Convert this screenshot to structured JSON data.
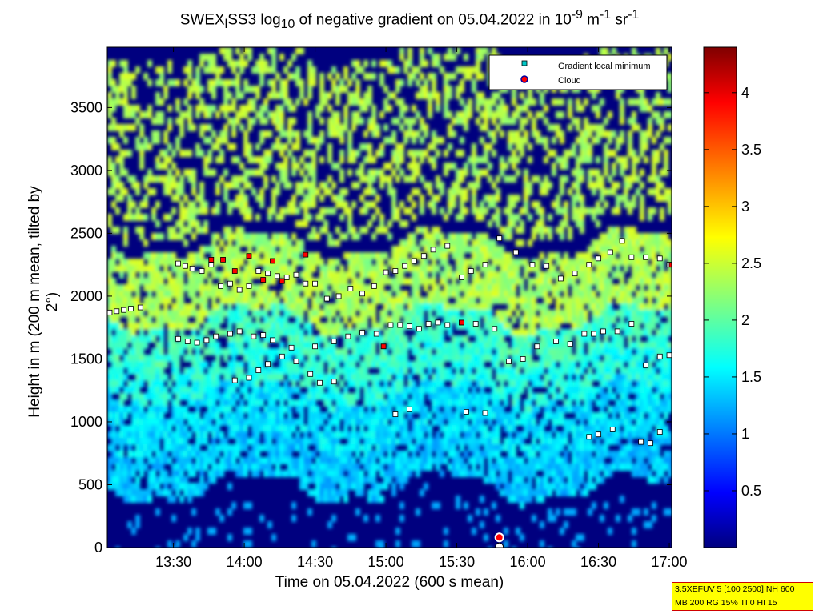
{
  "chart_data": {
    "type": "heatmap",
    "title_parts": {
      "prefix": "SWEX",
      "sub1": "l",
      "mid": "SS3 log",
      "sub2": "10",
      "rest": " of negative gradient on 05.04.2022 in 10",
      "sup1": "-9",
      "unit1": " m",
      "sup2": "-1",
      "unit2": " sr",
      "sup3": "-1"
    },
    "xlabel": "Time on 05.04.2022 (600 s mean)",
    "ylabel": "Height in m (200 m mean, tilted by 2°)",
    "x_ticks": [
      "13:30",
      "14:00",
      "14:30",
      "15:00",
      "15:30",
      "16:00",
      "16:30",
      "17:00"
    ],
    "x_tick_minutes": [
      810,
      840,
      870,
      900,
      930,
      960,
      990,
      1020
    ],
    "xlim_minutes": [
      782,
      1021
    ],
    "y_ticks": [
      0,
      500,
      1000,
      1500,
      2000,
      2500,
      3000,
      3500
    ],
    "ylim": [
      0,
      3980
    ],
    "colorbar_ticks": [
      "0.5",
      "1",
      "1.5",
      "2",
      "2.5",
      "3",
      "3.5",
      "4"
    ],
    "colorbar_values": [
      0.5,
      1,
      1.5,
      2,
      2.5,
      3,
      3.5,
      4
    ],
    "colorbar_range": [
      0,
      4.4
    ],
    "legend": {
      "placement": "top-right",
      "entries": [
        {
          "label": "Gradient local minimum",
          "marker": "square",
          "color": "#00c8c8"
        },
        {
          "label": "Cloud",
          "marker": "circle",
          "color": "#ff0000"
        }
      ]
    },
    "layers": [
      {
        "height_start": [
          1880,
          1900,
          2250,
          2200,
          2100,
          2300,
          2350,
          2250,
          2350,
          2200
        ],
        "height_end": [
          1980,
          2050,
          2300,
          2250,
          2300,
          2350,
          2450,
          2350,
          2300,
          2350
        ],
        "minute_start": 782,
        "minute_end": 1021,
        "level": 2.4
      },
      {
        "height_start": [
          1600,
          1650,
          1300,
          1300,
          1650,
          1700,
          1100,
          1350,
          1500,
          1100
        ],
        "height_end": [
          1700,
          1750,
          1400,
          1350,
          1750,
          1800,
          1200,
          1450,
          1550,
          1500
        ],
        "level": 1.9
      },
      {
        "height_start": [
          950,
          1050,
          1000,
          1050,
          1050,
          1000,
          1100,
          950,
          850,
          950
        ],
        "height_end": [
          1100,
          1150,
          1150,
          1150,
          1150,
          1150,
          1150,
          1100,
          950,
          1000
        ],
        "level": 1.5
      }
    ],
    "series": [
      {
        "name": "Gradient local minimum",
        "x_minutes": [
          783,
          786,
          789,
          792,
          796,
          812,
          815,
          818,
          822,
          826,
          830,
          834,
          838,
          842,
          846,
          850,
          854,
          858,
          862,
          866,
          870,
          875,
          880,
          885,
          890,
          895,
          900,
          904,
          908,
          912,
          916,
          920,
          926,
          932,
          936,
          942,
          948,
          955,
          962,
          968,
          974,
          980,
          986,
          990,
          995,
          1000,
          1004,
          1010,
          1016,
          1020,
          812,
          816,
          820,
          824,
          828,
          834,
          838,
          844,
          848,
          852,
          860,
          870,
          878,
          884,
          890,
          896,
          902,
          906,
          910,
          914,
          918,
          922,
          926,
          932,
          938,
          946,
          952,
          958,
          964,
          972,
          978,
          984,
          988,
          992,
          998,
          1004,
          1010,
          1016,
          1020,
          836,
          842,
          846,
          850,
          856,
          862,
          868,
          872,
          878,
          904,
          910,
          934,
          942,
          986,
          990,
          996,
          1008,
          1012,
          1016
        ],
        "y": [
          1870,
          1880,
          1890,
          1900,
          1910,
          2260,
          2240,
          2220,
          2200,
          2250,
          2080,
          2100,
          2050,
          2080,
          2200,
          2180,
          2160,
          2150,
          2170,
          2100,
          2100,
          1980,
          2000,
          2060,
          2020,
          2080,
          2190,
          2200,
          2240,
          2280,
          2320,
          2370,
          2400,
          2150,
          2200,
          2250,
          2460,
          2350,
          2250,
          2240,
          2140,
          2180,
          2250,
          2300,
          2350,
          2440,
          2310,
          2310,
          2300,
          2250,
          1660,
          1640,
          1630,
          1650,
          1680,
          1700,
          1720,
          1680,
          1690,
          1650,
          1590,
          1600,
          1640,
          1680,
          1710,
          1700,
          1770,
          1770,
          1760,
          1740,
          1780,
          1790,
          1770,
          1790,
          1780,
          1740,
          1480,
          1500,
          1600,
          1640,
          1620,
          1700,
          1700,
          1720,
          1720,
          1780,
          1450,
          1520,
          1530,
          1330,
          1350,
          1410,
          1460,
          1520,
          1480,
          1380,
          1310,
          1320,
          1060,
          1100,
          1080,
          1070,
          880,
          900,
          940,
          840,
          830,
          920,
          1110,
          1140,
          1260
        ]
      },
      {
        "name": "Cloud",
        "x_minutes": [
          826,
          831,
          836,
          842,
          848,
          852,
          856,
          866,
          899,
          932,
          948,
          1021
        ],
        "y": [
          2290,
          2290,
          2200,
          2320,
          2130,
          2280,
          2120,
          2330,
          1600,
          1790,
          30,
          2250
        ]
      }
    ]
  },
  "settings_box": {
    "line1": "3.5XEFUV 5 [100 2500] NH 600",
    "line2": "MB 200 RG 15% TI 0 HI 15"
  },
  "colors": {
    "background_low": "#00007f",
    "border": "#000000",
    "settings_bg": "#ffff00",
    "settings_border": "#d00000"
  }
}
